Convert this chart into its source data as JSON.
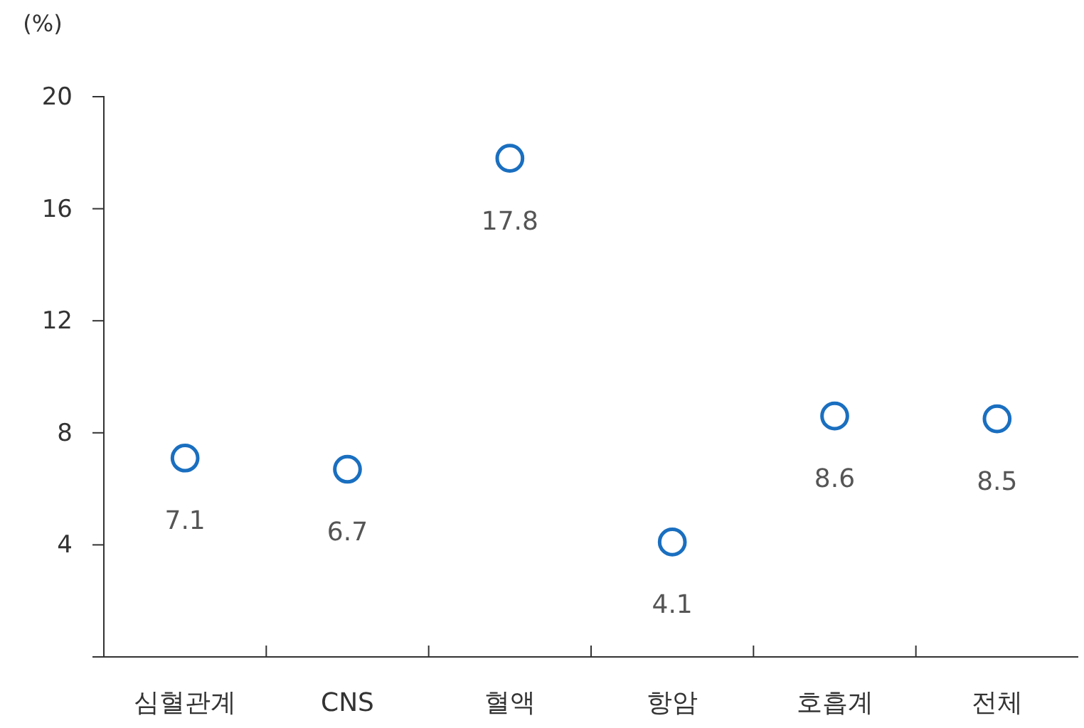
{
  "chart_data": {
    "type": "scatter",
    "ylabel": "(%)",
    "categories": [
      "심혈관계",
      "CNS",
      "혈액",
      "항암",
      "호흡계",
      "전체"
    ],
    "series": [
      {
        "color": "#1a6fc0",
        "values": [
          7.1,
          6.7,
          17.8,
          4.1,
          8.6,
          8.5
        ]
      }
    ],
    "ylim": [
      0,
      20
    ],
    "yticks": [
      4,
      8,
      12,
      16,
      20
    ],
    "marker": "circle",
    "data_labels": true
  }
}
